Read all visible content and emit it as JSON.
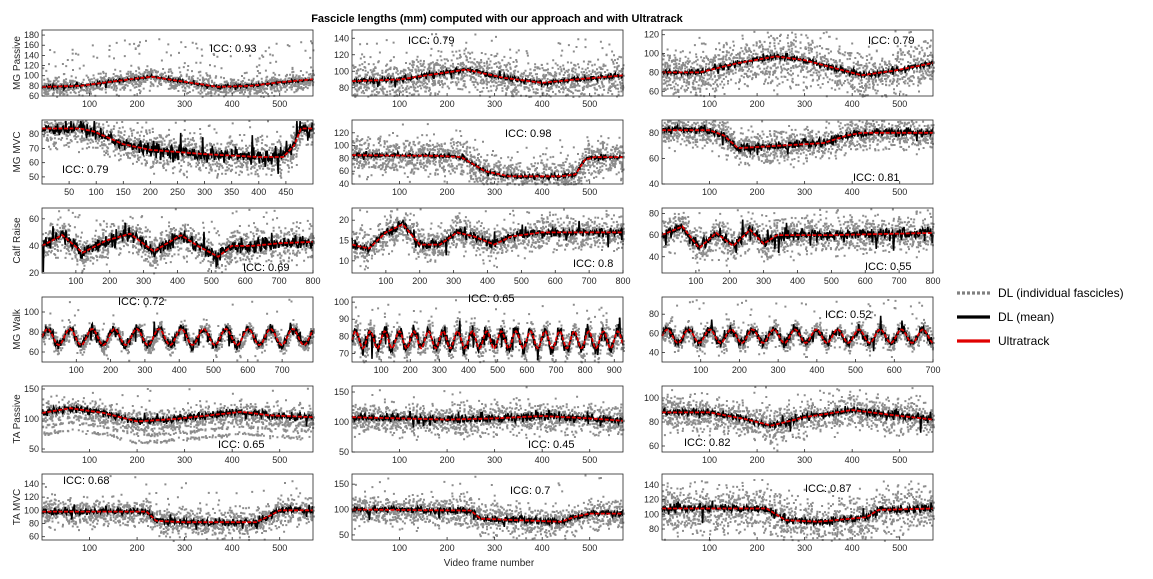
{
  "title": "Fascicle lengths (mm) computed with our approach and with Ultratrack",
  "xlabel": "Video frame number",
  "legend": {
    "placement": "right",
    "items": [
      {
        "label": "DL (individual fascicles)",
        "style": "dotted",
        "color": "#808080"
      },
      {
        "label": "DL (mean)",
        "style": "solid",
        "color": "#000000"
      },
      {
        "label": "Ultratrack",
        "style": "solid",
        "color": "#e00000"
      }
    ]
  },
  "colors": {
    "individual": "#8c8c8c",
    "mean": "#000000",
    "ultratrack": "#e00000",
    "axis": "#262626"
  },
  "chart_data": [
    {
      "type": "scatter",
      "row": "MG Passive",
      "icc": "ICC: 0.93",
      "xlim": [
        0,
        570
      ],
      "ylim": [
        60,
        190
      ],
      "yticks": [
        60,
        80,
        100,
        120,
        140,
        160,
        180
      ],
      "xticks": [
        100,
        200,
        300,
        400,
        500
      ],
      "trend": [
        [
          0,
          78
        ],
        [
          80,
          80
        ],
        [
          160,
          90
        ],
        [
          230,
          98
        ],
        [
          300,
          88
        ],
        [
          370,
          78
        ],
        [
          440,
          80
        ],
        [
          500,
          87
        ],
        [
          570,
          93
        ]
      ],
      "spread": 8,
      "noise": 1.5,
      "outliers": 0.12
    },
    {
      "type": "scatter",
      "row": "",
      "icc": "ICC: 0.79",
      "xlim": [
        0,
        570
      ],
      "ylim": [
        70,
        150
      ],
      "yticks": [
        80,
        100,
        120,
        140
      ],
      "xticks": [
        100,
        200,
        300,
        400,
        500
      ],
      "trend": [
        [
          0,
          88
        ],
        [
          100,
          90
        ],
        [
          180,
          97
        ],
        [
          240,
          102
        ],
        [
          320,
          92
        ],
        [
          400,
          86
        ],
        [
          470,
          90
        ],
        [
          570,
          95
        ]
      ],
      "spread": 12,
      "noise": 1.5,
      "outliers": 0.05
    },
    {
      "type": "scatter",
      "row": "",
      "icc": "ICC: 0.79",
      "xlim": [
        0,
        570
      ],
      "ylim": [
        55,
        125
      ],
      "yticks": [
        60,
        80,
        100,
        120
      ],
      "xticks": [
        100,
        200,
        300,
        400,
        500
      ],
      "trend": [
        [
          0,
          80
        ],
        [
          80,
          80
        ],
        [
          160,
          90
        ],
        [
          240,
          97
        ],
        [
          300,
          93
        ],
        [
          360,
          85
        ],
        [
          420,
          77
        ],
        [
          490,
          82
        ],
        [
          570,
          90
        ]
      ],
      "spread": 13,
      "noise": 1.5,
      "outliers": 0.03
    },
    {
      "type": "scatter",
      "row": "MG MVC",
      "icc": "ICC: 0.79",
      "xlim": [
        0,
        500
      ],
      "ylim": [
        45,
        90
      ],
      "yticks": [
        50,
        60,
        70,
        80
      ],
      "xticks": [
        50,
        100,
        150,
        200,
        250,
        300,
        350,
        400,
        450
      ],
      "trend": [
        [
          0,
          84
        ],
        [
          70,
          84
        ],
        [
          95,
          82
        ],
        [
          150,
          73
        ],
        [
          200,
          69
        ],
        [
          300,
          66
        ],
        [
          400,
          64
        ],
        [
          445,
          64
        ],
        [
          465,
          72
        ],
        [
          478,
          84
        ],
        [
          500,
          84
        ]
      ],
      "spread": 6,
      "noise": 2.5,
      "outliers": 0.08
    },
    {
      "type": "scatter",
      "row": "",
      "icc": "ICC: 0.98",
      "xlim": [
        0,
        570
      ],
      "ylim": [
        40,
        140
      ],
      "yticks": [
        40,
        60,
        80,
        100,
        120
      ],
      "xticks": [
        100,
        200,
        300,
        400,
        500
      ],
      "trend": [
        [
          0,
          85
        ],
        [
          180,
          84
        ],
        [
          230,
          82
        ],
        [
          280,
          60
        ],
        [
          330,
          52
        ],
        [
          440,
          52
        ],
        [
          470,
          55
        ],
        [
          490,
          78
        ],
        [
          510,
          82
        ],
        [
          570,
          82
        ]
      ],
      "spread": 14,
      "noise": 1.5,
      "outliers": 0.02
    },
    {
      "type": "scatter",
      "row": "",
      "icc": "ICC: 0.81",
      "xlim": [
        0,
        570
      ],
      "ylim": [
        40,
        90
      ],
      "yticks": [
        40,
        60,
        80
      ],
      "xticks": [
        100,
        200,
        300,
        400,
        500
      ],
      "trend": [
        [
          0,
          82
        ],
        [
          100,
          82
        ],
        [
          130,
          78
        ],
        [
          160,
          68
        ],
        [
          250,
          70
        ],
        [
          340,
          72
        ],
        [
          390,
          78
        ],
        [
          420,
          80
        ],
        [
          570,
          80
        ]
      ],
      "spread": 6,
      "noise": 1.5,
      "outliers": 0.06
    },
    {
      "type": "scatter",
      "row": "Calf Raise",
      "icc": "ICC: 0.69",
      "xlim": [
        0,
        800
      ],
      "ylim": [
        20,
        68
      ],
      "yticks": [
        20,
        40,
        60
      ],
      "xticks": [
        100,
        200,
        300,
        400,
        500,
        600,
        700,
        800
      ],
      "trend": [
        [
          0,
          40
        ],
        [
          60,
          48
        ],
        [
          120,
          35
        ],
        [
          190,
          44
        ],
        [
          260,
          49
        ],
        [
          330,
          36
        ],
        [
          410,
          48
        ],
        [
          460,
          40
        ],
        [
          520,
          32
        ],
        [
          560,
          40
        ],
        [
          620,
          40
        ],
        [
          700,
          42
        ],
        [
          800,
          43
        ]
      ],
      "spread": 6,
      "noise": 2.5,
      "outliers": 0.06
    },
    {
      "type": "scatter",
      "row": "",
      "icc": "ICC: 0.8",
      "xlim": [
        0,
        800
      ],
      "ylim": [
        7,
        23
      ],
      "yticks": [
        10,
        15,
        20
      ],
      "xticks": [
        100,
        200,
        300,
        400,
        500,
        600,
        700,
        800
      ],
      "trend": [
        [
          0,
          14
        ],
        [
          50,
          13
        ],
        [
          100,
          17
        ],
        [
          150,
          19
        ],
        [
          200,
          14
        ],
        [
          260,
          14
        ],
        [
          310,
          17
        ],
        [
          360,
          16
        ],
        [
          420,
          14
        ],
        [
          470,
          16
        ],
        [
          560,
          17
        ],
        [
          800,
          17
        ]
      ],
      "spread": 2,
      "noise": 0.5,
      "outliers": 0.05
    },
    {
      "type": "scatter",
      "row": "",
      "icc": "ICC: 0.55",
      "xlim": [
        0,
        800
      ],
      "ylim": [
        25,
        85
      ],
      "yticks": [
        40,
        60,
        80
      ],
      "xticks": [
        100,
        200,
        300,
        400,
        500,
        600,
        700,
        800
      ],
      "trend": [
        [
          0,
          60
        ],
        [
          60,
          68
        ],
        [
          110,
          48
        ],
        [
          160,
          62
        ],
        [
          210,
          50
        ],
        [
          260,
          65
        ],
        [
          300,
          52
        ],
        [
          340,
          60
        ],
        [
          500,
          60
        ],
        [
          800,
          62
        ]
      ],
      "spread": 8,
      "noise": 2.5,
      "outliers": 0.06
    },
    {
      "type": "scatter",
      "row": "MG Walk",
      "icc": "ICC: 0.72",
      "xlim": [
        0,
        790
      ],
      "ylim": [
        50,
        115
      ],
      "yticks": [
        60,
        80,
        100
      ],
      "xticks": [
        100,
        200,
        300,
        400,
        500,
        600,
        700
      ],
      "trend": [
        [
          0,
          75
        ],
        [
          790,
          75
        ]
      ],
      "osc": {
        "period": 65,
        "amp": 8
      },
      "spread": 4,
      "noise": 2.5,
      "outliers": 0.04
    },
    {
      "type": "scatter",
      "row": "",
      "icc": "ICC: 0.65",
      "xlim": [
        0,
        930
      ],
      "ylim": [
        65,
        103
      ],
      "yticks": [
        70,
        80,
        90,
        100
      ],
      "xticks": [
        100,
        200,
        300,
        400,
        500,
        600,
        700,
        800,
        900
      ],
      "trend": [
        [
          0,
          78
        ],
        [
          930,
          78
        ]
      ],
      "osc": {
        "period": 50,
        "amp": 5
      },
      "spread": 4,
      "noise": 2,
      "outliers": 0.04
    },
    {
      "type": "scatter",
      "row": "",
      "icc": "ICC: 0.52",
      "xlim": [
        0,
        700
      ],
      "ylim": [
        30,
        98
      ],
      "yticks": [
        40,
        60,
        80
      ],
      "xticks": [
        100,
        200,
        300,
        400,
        500,
        600,
        700
      ],
      "trend": [
        [
          0,
          57
        ],
        [
          700,
          57
        ]
      ],
      "osc": {
        "period": 55,
        "amp": 7
      },
      "spread": 5,
      "noise": 2.5,
      "outliers": 0.05
    },
    {
      "type": "scatter",
      "row": "TA Passive",
      "icc": "ICC: 0.65",
      "xlim": [
        0,
        570
      ],
      "ylim": [
        45,
        155
      ],
      "yticks": [
        50,
        100,
        150
      ],
      "xticks": [
        100,
        200,
        300,
        400,
        500
      ],
      "trend": [
        [
          0,
          110
        ],
        [
          60,
          118
        ],
        [
          130,
          110
        ],
        [
          200,
          96
        ],
        [
          280,
          100
        ],
        [
          420,
          112
        ],
        [
          480,
          106
        ],
        [
          570,
          103
        ]
      ],
      "spread": 9,
      "noise": 3,
      "outliers": 0.03,
      "bands": [
        {
          "off": -12
        },
        {
          "off": -22
        },
        {
          "off": -34
        }
      ]
    },
    {
      "type": "scatter",
      "row": "",
      "icc": "ICC: 0.45",
      "xlim": [
        0,
        570
      ],
      "ylim": [
        50,
        160
      ],
      "yticks": [
        50,
        100,
        150
      ],
      "xticks": [
        100,
        200,
        300,
        400,
        500
      ],
      "trend": [
        [
          0,
          108
        ],
        [
          100,
          106
        ],
        [
          200,
          104
        ],
        [
          300,
          106
        ],
        [
          400,
          110
        ],
        [
          500,
          106
        ],
        [
          570,
          102
        ]
      ],
      "spread": 12,
      "noise": 3.5,
      "outliers": 0.04
    },
    {
      "type": "scatter",
      "row": "",
      "icc": "ICC: 0.82",
      "xlim": [
        0,
        570
      ],
      "ylim": [
        55,
        110
      ],
      "yticks": [
        60,
        80,
        100
      ],
      "xticks": [
        100,
        200,
        300,
        400,
        500
      ],
      "trend": [
        [
          0,
          88
        ],
        [
          100,
          88
        ],
        [
          180,
          82
        ],
        [
          230,
          77
        ],
        [
          300,
          84
        ],
        [
          400,
          90
        ],
        [
          480,
          86
        ],
        [
          570,
          82
        ]
      ],
      "spread": 7,
      "noise": 1.5,
      "outliers": 0.03
    },
    {
      "type": "scatter",
      "row": "TA MVC",
      "icc": "ICC: 0.68",
      "xlim": [
        0,
        570
      ],
      "ylim": [
        55,
        155
      ],
      "yticks": [
        60,
        80,
        100,
        120,
        140
      ],
      "xticks": [
        100,
        200,
        300,
        400,
        500
      ],
      "trend": [
        [
          0,
          98
        ],
        [
          220,
          98
        ],
        [
          240,
          84
        ],
        [
          300,
          82
        ],
        [
          450,
          82
        ],
        [
          480,
          92
        ],
        [
          500,
          100
        ],
        [
          570,
          100
        ]
      ],
      "spread": 10,
      "noise": 2.5,
      "outliers": 0.03
    },
    {
      "type": "scatter",
      "row": "",
      "icc": "ICC: 0.7",
      "xlim": [
        0,
        570
      ],
      "ylim": [
        40,
        170
      ],
      "yticks": [
        50,
        100,
        150
      ],
      "xticks": [
        100,
        200,
        300,
        400,
        500
      ],
      "trend": [
        [
          0,
          100
        ],
        [
          250,
          98
        ],
        [
          270,
          82
        ],
        [
          320,
          80
        ],
        [
          440,
          76
        ],
        [
          470,
          86
        ],
        [
          500,
          92
        ],
        [
          570,
          92
        ]
      ],
      "spread": 14,
      "noise": 3,
      "outliers": 0.04
    },
    {
      "type": "scatter",
      "row": "",
      "icc": "ICC: 0.87",
      "xlim": [
        0,
        570
      ],
      "ylim": [
        65,
        155
      ],
      "yticks": [
        80,
        100,
        120,
        140
      ],
      "xticks": [
        100,
        200,
        300,
        400,
        500
      ],
      "trend": [
        [
          0,
          108
        ],
        [
          220,
          108
        ],
        [
          260,
          92
        ],
        [
          330,
          90
        ],
        [
          430,
          96
        ],
        [
          455,
          106
        ],
        [
          570,
          108
        ]
      ],
      "spread": 16,
      "noise": 2.5,
      "outliers": 0.03
    }
  ]
}
